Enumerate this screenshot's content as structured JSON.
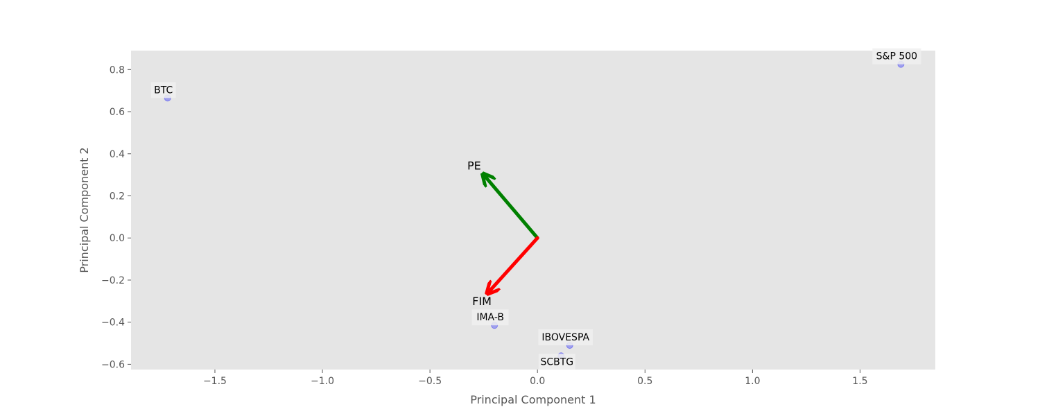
{
  "chart_data": {
    "type": "scatter",
    "xlabel": "Principal Component 1",
    "ylabel": "Principal Component 2",
    "xlim": [
      -1.89,
      1.85
    ],
    "ylim": [
      -0.625,
      0.89
    ],
    "x_ticks": [
      -1.5,
      -1.0,
      -0.5,
      0.0,
      0.5,
      1.0,
      1.5
    ],
    "x_tick_labels": [
      "−1.5",
      "−1.0",
      "−0.5",
      "0.0",
      "0.5",
      "1.0",
      "1.5"
    ],
    "y_ticks": [
      0.8,
      0.6,
      0.4,
      0.2,
      0.0,
      -0.2,
      -0.4,
      -0.6
    ],
    "y_tick_labels": [
      "0.8",
      "0.6",
      "0.4",
      "0.2",
      "0.0",
      "−0.2",
      "−0.4",
      "−0.6"
    ],
    "grid": false,
    "background": "#e5e5e5",
    "point_color": "#0000ff",
    "points": [
      {
        "label": "BTC",
        "x": -1.72,
        "y": 0.665
      },
      {
        "label": "S&P 500",
        "x": 1.69,
        "y": 0.825
      },
      {
        "label": "IMA-B",
        "x": -0.2,
        "y": -0.415
      },
      {
        "label": "IBOVESPA",
        "x": 0.15,
        "y": -0.51
      },
      {
        "label": "SCBTG",
        "x": 0.11,
        "y": -0.56
      }
    ],
    "vectors": [
      {
        "label": "PE",
        "x": -0.25,
        "y": 0.3,
        "color": "#008000"
      },
      {
        "label": "FIM",
        "x": -0.23,
        "y": -0.26,
        "color": "#ff0000"
      }
    ]
  }
}
